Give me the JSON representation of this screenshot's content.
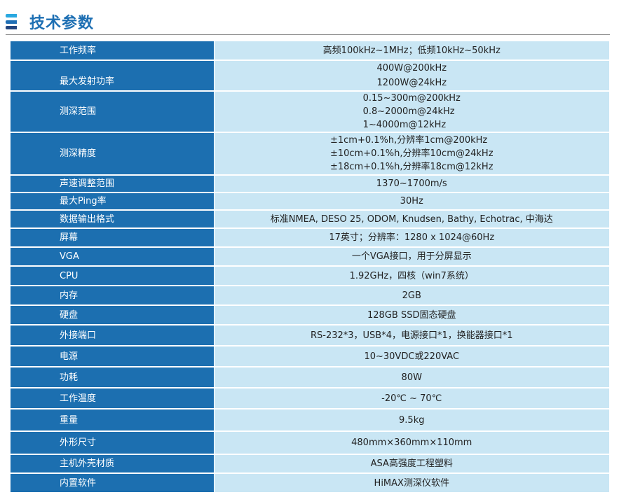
{
  "title": "技术参数",
  "colors": {
    "key_bg": "#1c6fb0",
    "value_bg": "#c9e6f4",
    "title": "#1d6fb3"
  },
  "rows": [
    {
      "key": "工作频率",
      "values": [
        "高频100kHz~1MHz；低频10kHz~50kHz"
      ]
    },
    {
      "key": "最大发射功率",
      "values": [
        "400W@200kHz",
        "1200W@24kHz"
      ]
    },
    {
      "key": "测深范围",
      "values": [
        "0.15~300m@200kHz",
        "0.8~2000m@24kHz",
        "1~4000m@12kHz"
      ]
    },
    {
      "key": "测深精度",
      "values": [
        "±1cm+0.1%h,分辨率1cm@200kHz",
        "±10cm+0.1%h,分辨率10cm@24kHz",
        "±18cm+0.1%h,分辨率18cm@12kHz"
      ]
    },
    {
      "key": "声速调整范围",
      "values": [
        "1370~1700m/s"
      ]
    },
    {
      "key": "最大Ping率",
      "values": [
        "30Hz"
      ]
    },
    {
      "key": "数据输出格式",
      "values": [
        "标准NMEA, DESO 25, ODOM, Knudsen, Bathy, Echotrac, 中海达"
      ]
    },
    {
      "key": "屏幕",
      "values": [
        "17英寸；分辨率：1280 x 1024@60Hz"
      ]
    },
    {
      "key": "VGA",
      "values": [
        "一个VGA接口，用于分屏显示"
      ]
    },
    {
      "key": "CPU",
      "values": [
        "1.92GHz，四核（win7系统）"
      ]
    },
    {
      "key": "内存",
      "values": [
        "2GB"
      ]
    },
    {
      "key": "硬盘",
      "values": [
        "128GB SSD固态硬盘"
      ]
    },
    {
      "key": "外接端口",
      "values": [
        "RS-232*3，USB*4，电源接口*1，换能器接口*1"
      ]
    },
    {
      "key": "电源",
      "values": [
        "10~30VDC或220VAC"
      ]
    },
    {
      "key": "功耗",
      "values": [
        "80W"
      ]
    },
    {
      "key": "工作温度",
      "values": [
        "-20℃ ~ 70℃"
      ]
    },
    {
      "key": "重量",
      "values": [
        "9.5kg"
      ]
    },
    {
      "key": "外形尺寸",
      "values": [
        "480mm×360mm×110mm"
      ]
    },
    {
      "key": "主机外壳材质",
      "values": [
        "ASA高强度工程塑料"
      ]
    },
    {
      "key": "内置软件",
      "values": [
        "HiMAX测深仪软件"
      ]
    }
  ]
}
